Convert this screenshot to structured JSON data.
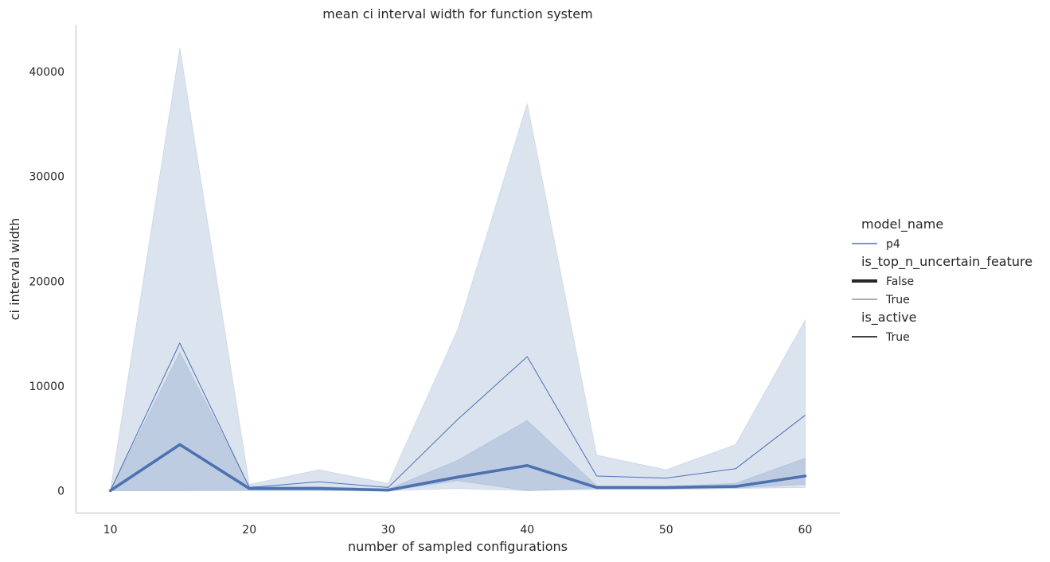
{
  "chart_data": {
    "type": "line",
    "title": "mean ci interval width for function system",
    "xlabel": "number of sampled configurations",
    "ylabel": "ci interval width",
    "xlim": [
      7.5,
      62.5
    ],
    "ylim": [
      -2100,
      44500
    ],
    "x_ticks": [
      10,
      20,
      30,
      40,
      50,
      60
    ],
    "y_ticks": [
      0,
      10000,
      20000,
      30000,
      40000
    ],
    "grid": false,
    "legend_position": "right",
    "colors": {
      "series": "#4c72b0",
      "band": "#4c72b0",
      "axis": "#cccccc",
      "text": "#262626"
    },
    "x": [
      10,
      15,
      20,
      25,
      30,
      35,
      40,
      45,
      50,
      55,
      60
    ],
    "series": [
      {
        "name": "False",
        "line_width": "thick",
        "values": [
          0,
          4400,
          200,
          200,
          50,
          1300,
          2400,
          300,
          300,
          400,
          1400
        ],
        "ci_low": [
          0,
          0,
          50,
          50,
          0,
          950,
          0,
          250,
          250,
          250,
          600
        ],
        "ci_high": [
          0,
          13200,
          400,
          400,
          150,
          2900,
          6700,
          450,
          400,
          700,
          3100
        ]
      },
      {
        "name": "True",
        "line_width": "thin",
        "values": [
          0,
          14100,
          300,
          850,
          300,
          6800,
          12800,
          1400,
          1200,
          2100,
          7200
        ],
        "ci_low": [
          0,
          0,
          0,
          0,
          0,
          200,
          0,
          100,
          100,
          200,
          300
        ],
        "ci_high": [
          0,
          42300,
          600,
          2000,
          700,
          15400,
          37000,
          3400,
          2000,
          4400,
          16300
        ]
      }
    ],
    "legend": {
      "sections": [
        {
          "title": "model_name",
          "entries": [
            {
              "label": "p4",
              "style": "color"
            }
          ]
        },
        {
          "title": "is_top_n_uncertain_feature",
          "entries": [
            {
              "label": "False",
              "style": "thick"
            },
            {
              "label": "True",
              "style": "thin"
            }
          ]
        },
        {
          "title": "is_active",
          "entries": [
            {
              "label": "True",
              "style": "solid"
            }
          ]
        }
      ]
    }
  }
}
